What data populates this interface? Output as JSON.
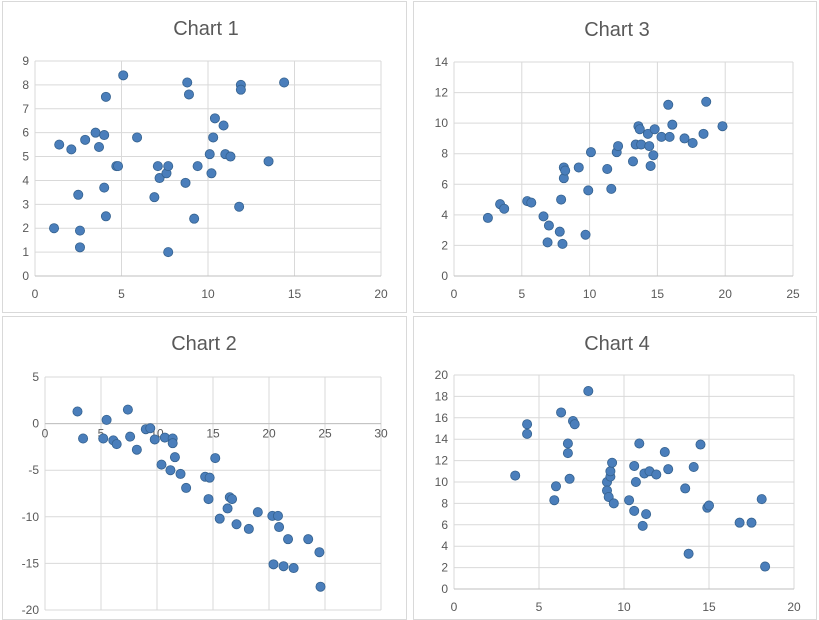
{
  "chart_data": [
    {
      "type": "scatter",
      "title": "Chart 1",
      "xlim": [
        0,
        20
      ],
      "ylim": [
        0,
        9
      ],
      "xticks": [
        0,
        5,
        10,
        15,
        20
      ],
      "yticks": [
        0,
        1,
        2,
        3,
        4,
        5,
        6,
        7,
        8,
        9
      ],
      "grid": true,
      "marker_color": "#4a7ebb",
      "points": [
        [
          1.1,
          2.0
        ],
        [
          1.4,
          5.5
        ],
        [
          2.1,
          5.3
        ],
        [
          2.5,
          3.4
        ],
        [
          2.6,
          1.9
        ],
        [
          2.6,
          1.2
        ],
        [
          2.9,
          5.7
        ],
        [
          3.5,
          6.0
        ],
        [
          3.7,
          5.4
        ],
        [
          4.0,
          3.7
        ],
        [
          4.0,
          5.9
        ],
        [
          4.1,
          7.5
        ],
        [
          4.1,
          2.5
        ],
        [
          4.7,
          4.6
        ],
        [
          4.8,
          4.6
        ],
        [
          5.1,
          8.4
        ],
        [
          5.9,
          5.8
        ],
        [
          6.9,
          3.3
        ],
        [
          7.1,
          4.6
        ],
        [
          7.2,
          4.1
        ],
        [
          7.6,
          4.3
        ],
        [
          7.7,
          4.6
        ],
        [
          7.7,
          1.0
        ],
        [
          8.7,
          3.9
        ],
        [
          8.8,
          8.1
        ],
        [
          8.9,
          7.6
        ],
        [
          9.2,
          2.4
        ],
        [
          9.4,
          4.6
        ],
        [
          10.1,
          5.1
        ],
        [
          10.2,
          4.3
        ],
        [
          10.3,
          5.8
        ],
        [
          10.4,
          6.6
        ],
        [
          10.9,
          6.3
        ],
        [
          11.0,
          5.1
        ],
        [
          11.3,
          5.0
        ],
        [
          11.8,
          2.9
        ],
        [
          11.9,
          8.0
        ],
        [
          11.9,
          7.8
        ],
        [
          13.5,
          4.8
        ],
        [
          14.4,
          8.1
        ]
      ]
    },
    {
      "type": "scatter",
      "title": "Chart 3",
      "xlim": [
        0,
        25
      ],
      "ylim": [
        0,
        14
      ],
      "xticks": [
        0,
        5,
        10,
        15,
        20,
        25
      ],
      "yticks": [
        0,
        2,
        4,
        6,
        8,
        10,
        12,
        14
      ],
      "grid": true,
      "marker_color": "#4a7ebb",
      "points": [
        [
          2.5,
          3.8
        ],
        [
          3.4,
          4.7
        ],
        [
          3.7,
          4.4
        ],
        [
          5.4,
          4.9
        ],
        [
          5.7,
          4.8
        ],
        [
          6.6,
          3.9
        ],
        [
          6.9,
          2.2
        ],
        [
          7.0,
          3.3
        ],
        [
          7.8,
          2.9
        ],
        [
          7.9,
          5.0
        ],
        [
          8.0,
          2.1
        ],
        [
          8.1,
          6.4
        ],
        [
          8.1,
          7.1
        ],
        [
          8.2,
          6.9
        ],
        [
          9.2,
          7.1
        ],
        [
          9.7,
          2.7
        ],
        [
          9.9,
          5.6
        ],
        [
          10.1,
          8.1
        ],
        [
          11.3,
          7.0
        ],
        [
          11.6,
          5.7
        ],
        [
          12.0,
          8.1
        ],
        [
          12.1,
          8.5
        ],
        [
          13.2,
          7.5
        ],
        [
          13.4,
          8.6
        ],
        [
          13.6,
          9.8
        ],
        [
          13.7,
          9.6
        ],
        [
          13.8,
          8.6
        ],
        [
          14.3,
          9.3
        ],
        [
          14.4,
          8.5
        ],
        [
          14.5,
          7.2
        ],
        [
          14.7,
          7.9
        ],
        [
          14.8,
          9.6
        ],
        [
          15.3,
          9.1
        ],
        [
          15.8,
          11.2
        ],
        [
          15.9,
          9.1
        ],
        [
          16.1,
          9.9
        ],
        [
          17.0,
          9.0
        ],
        [
          17.6,
          8.7
        ],
        [
          18.4,
          9.3
        ],
        [
          18.6,
          11.4
        ],
        [
          19.8,
          9.8
        ]
      ]
    },
    {
      "type": "scatter",
      "title": "Chart 2",
      "xlim": [
        0,
        30
      ],
      "ylim": [
        -20,
        5
      ],
      "xticks": [
        0,
        5,
        10,
        15,
        20,
        25,
        30
      ],
      "yticks": [
        -20,
        -15,
        -10,
        -5,
        0,
        5
      ],
      "grid": true,
      "marker_color": "#4a7ebb",
      "points": [
        [
          2.9,
          1.3
        ],
        [
          3.4,
          -1.6
        ],
        [
          5.2,
          -1.6
        ],
        [
          5.5,
          0.4
        ],
        [
          6.1,
          -1.8
        ],
        [
          6.4,
          -2.2
        ],
        [
          7.4,
          1.5
        ],
        [
          7.6,
          -1.4
        ],
        [
          8.2,
          -2.8
        ],
        [
          9.0,
          -0.6
        ],
        [
          9.4,
          -0.5
        ],
        [
          9.8,
          -1.7
        ],
        [
          10.4,
          -4.4
        ],
        [
          10.7,
          -1.5
        ],
        [
          11.2,
          -5.0
        ],
        [
          11.4,
          -1.6
        ],
        [
          11.4,
          -2.1
        ],
        [
          11.6,
          -3.6
        ],
        [
          12.1,
          -5.4
        ],
        [
          12.6,
          -6.9
        ],
        [
          14.3,
          -5.7
        ],
        [
          14.6,
          -8.1
        ],
        [
          14.7,
          -5.8
        ],
        [
          15.2,
          -3.7
        ],
        [
          15.6,
          -10.2
        ],
        [
          16.3,
          -9.1
        ],
        [
          16.5,
          -7.9
        ],
        [
          16.7,
          -8.1
        ],
        [
          17.1,
          -10.8
        ],
        [
          18.2,
          -11.3
        ],
        [
          19.0,
          -9.5
        ],
        [
          20.3,
          -9.9
        ],
        [
          20.4,
          -15.1
        ],
        [
          20.8,
          -9.9
        ],
        [
          20.9,
          -11.1
        ],
        [
          21.3,
          -15.3
        ],
        [
          21.7,
          -12.4
        ],
        [
          22.2,
          -15.5
        ],
        [
          23.5,
          -12.4
        ],
        [
          24.5,
          -13.8
        ],
        [
          24.6,
          -17.5
        ]
      ]
    },
    {
      "type": "scatter",
      "title": "Chart 4",
      "xlim": [
        0,
        20
      ],
      "ylim": [
        0,
        20
      ],
      "xticks": [
        0,
        5,
        10,
        15,
        20
      ],
      "yticks": [
        0,
        2,
        4,
        6,
        8,
        10,
        12,
        14,
        16,
        18,
        20
      ],
      "grid": true,
      "marker_color": "#4a7ebb",
      "points": [
        [
          3.6,
          10.6
        ],
        [
          4.3,
          15.4
        ],
        [
          4.3,
          14.5
        ],
        [
          5.9,
          8.3
        ],
        [
          6.0,
          9.6
        ],
        [
          6.3,
          16.5
        ],
        [
          6.7,
          13.6
        ],
        [
          6.7,
          12.7
        ],
        [
          6.8,
          10.3
        ],
        [
          7.0,
          15.7
        ],
        [
          7.1,
          15.4
        ],
        [
          7.9,
          18.5
        ],
        [
          9.0,
          10.0
        ],
        [
          9.0,
          9.2
        ],
        [
          9.1,
          8.6
        ],
        [
          9.2,
          10.5
        ],
        [
          9.2,
          11.0
        ],
        [
          9.3,
          11.8
        ],
        [
          9.4,
          8.0
        ],
        [
          10.3,
          8.3
        ],
        [
          10.6,
          11.5
        ],
        [
          10.6,
          7.3
        ],
        [
          10.7,
          10.0
        ],
        [
          10.9,
          13.6
        ],
        [
          11.1,
          5.9
        ],
        [
          11.2,
          10.8
        ],
        [
          11.3,
          7.0
        ],
        [
          11.5,
          11.0
        ],
        [
          11.9,
          10.7
        ],
        [
          12.4,
          12.8
        ],
        [
          12.6,
          11.2
        ],
        [
          13.6,
          9.4
        ],
        [
          13.8,
          3.3
        ],
        [
          14.1,
          11.4
        ],
        [
          14.5,
          13.5
        ],
        [
          14.9,
          7.6
        ],
        [
          15.0,
          7.8
        ],
        [
          16.8,
          6.2
        ],
        [
          17.5,
          6.2
        ],
        [
          18.1,
          8.4
        ],
        [
          18.3,
          2.1
        ]
      ]
    }
  ]
}
